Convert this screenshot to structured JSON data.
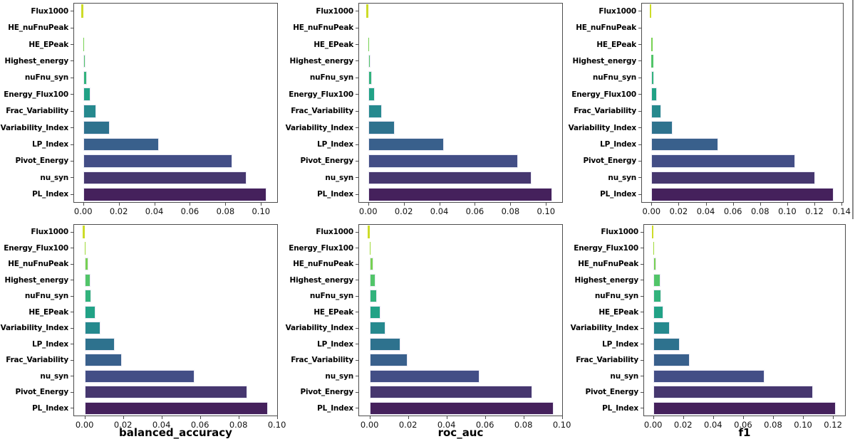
{
  "figure": {
    "background": "#ffffff",
    "spine_color": "#4d4d4d",
    "text_color": "#000000",
    "bar_edge_color": "#e9e9f3",
    "palette": [
      "#cddc29",
      "#9fd938",
      "#77d153",
      "#52c569",
      "#32b37c",
      "#21a286",
      "#26898e",
      "#2e728e",
      "#39608c",
      "#434e86",
      "#46376f",
      "#45215c"
    ]
  },
  "chart_data": [
    {
      "type": "bar",
      "orientation": "horizontal",
      "title": "",
      "xlabel": "",
      "categories": [
        "Flux1000",
        "HE_nuFnuPeak",
        "HE_EPeak",
        "Highest_energy",
        "nuFnu_syn",
        "Energy_Flux100",
        "Frac_Variability",
        "Variability_Index",
        "LP_Index",
        "Pivot_Energy",
        "nu_syn",
        "PL_Index"
      ],
      "values": [
        -0.001,
        0.0,
        0.0005,
        0.0013,
        0.0021,
        0.004,
        0.0074,
        0.015,
        0.0426,
        0.084,
        0.0918,
        0.1032
      ],
      "xtick_labels": [
        "0.00",
        "0.02",
        "0.04",
        "0.06",
        "0.08",
        "0.10"
      ],
      "xlim": [
        -0.0055,
        0.1095
      ],
      "grid": false,
      "legend": false
    },
    {
      "type": "bar",
      "orientation": "horizontal",
      "title": "",
      "xlabel": "",
      "categories": [
        "Flux1000",
        "HE_nuFnuPeak",
        "HE_EPeak",
        "Highest_energy",
        "nuFnu_syn",
        "Energy_Flux100",
        "Frac_Variability",
        "Variability_Index",
        "LP_Index",
        "Pivot_Energy",
        "nu_syn",
        "PL_Index"
      ],
      "values": [
        -0.001,
        0.0,
        0.0005,
        0.0013,
        0.0021,
        0.0038,
        0.0076,
        0.0148,
        0.0424,
        0.0842,
        0.092,
        0.1034
      ],
      "xtick_labels": [
        "0.00",
        "0.02",
        "0.04",
        "0.06",
        "0.08",
        "0.10"
      ],
      "xlim": [
        -0.0055,
        0.1095
      ],
      "grid": false,
      "legend": false
    },
    {
      "type": "bar",
      "orientation": "horizontal",
      "title": "",
      "xlabel": "",
      "categories": [
        "Flux1000",
        "HE_nuFnuPeak",
        "HE_EPeak",
        "Highest_energy",
        "nuFnu_syn",
        "Energy_Flux100",
        "Frac_Variability",
        "Variability_Index",
        "LP_Index",
        "Pivot_Energy",
        "nu_syn",
        "PL_Index"
      ],
      "values": [
        -0.001,
        0.0,
        0.0004,
        0.0013,
        0.002,
        0.0042,
        0.007,
        0.0158,
        0.0494,
        0.1058,
        0.1206,
        0.134
      ],
      "xtick_labels": [
        "0.00",
        "0.02",
        "0.04",
        "0.06",
        "0.08",
        "0.10",
        "0.12",
        "0.14"
      ],
      "xlim": [
        -0.0075,
        0.1415
      ],
      "grid": false,
      "legend": false
    },
    {
      "type": "bar",
      "orientation": "horizontal",
      "title": "",
      "xlabel": "balanced_accuracy",
      "categories": [
        "Flux1000",
        "Energy_Flux100",
        "HE_nuFnuPeak",
        "Highest_energy",
        "nuFnu_syn",
        "HE_EPeak",
        "Variability_Index",
        "LP_Index",
        "Frac_Variability",
        "nu_syn",
        "Pivot_Energy",
        "PL_Index"
      ],
      "values": [
        -0.001,
        0.0005,
        0.0018,
        0.0031,
        0.0036,
        0.0055,
        0.0082,
        0.0157,
        0.0195,
        0.0572,
        0.0844,
        0.0952
      ],
      "xtick_labels": [
        "0.00",
        "0.02",
        "0.04",
        "0.06",
        "0.08",
        "0.10"
      ],
      "xlim": [
        -0.0058,
        0.1005
      ],
      "grid": false,
      "legend": false
    },
    {
      "type": "bar",
      "orientation": "horizontal",
      "title": "",
      "xlabel": "roc_auc",
      "categories": [
        "Flux1000",
        "Energy_Flux100",
        "HE_nuFnuPeak",
        "Highest_energy",
        "nuFnu_syn",
        "HE_EPeak",
        "Variability_Index",
        "LP_Index",
        "Frac_Variability",
        "nu_syn",
        "Pivot_Energy",
        "PL_Index"
      ],
      "values": [
        -0.001,
        0.0006,
        0.0018,
        0.0032,
        0.0037,
        0.0055,
        0.0084,
        0.016,
        0.0197,
        0.0572,
        0.0845,
        0.0957
      ],
      "xtick_labels": [
        "0.00",
        "0.02",
        "0.04",
        "0.06",
        "0.08",
        "0.10"
      ],
      "xlim": [
        -0.0058,
        0.1005
      ],
      "grid": false,
      "legend": false
    },
    {
      "type": "bar",
      "orientation": "horizontal",
      "title": "",
      "xlabel": "f1",
      "categories": [
        "Flux1000",
        "Energy_Flux100",
        "HE_nuFnuPeak",
        "Highest_energy",
        "nuFnu_syn",
        "HE_EPeak",
        "Variability_Index",
        "LP_Index",
        "Frac_Variability",
        "nu_syn",
        "Pivot_Energy",
        "PL_Index"
      ],
      "values": [
        -0.001,
        0.0003,
        0.0022,
        0.0048,
        0.0056,
        0.007,
        0.0113,
        0.0176,
        0.0242,
        0.0745,
        0.1067,
        0.1217
      ],
      "xtick_labels": [
        "0.00",
        "0.02",
        "0.04",
        "0.06",
        "0.08",
        "0.10",
        "0.12"
      ],
      "xlim": [
        -0.0065,
        0.1285
      ],
      "grid": false,
      "legend": false
    }
  ]
}
